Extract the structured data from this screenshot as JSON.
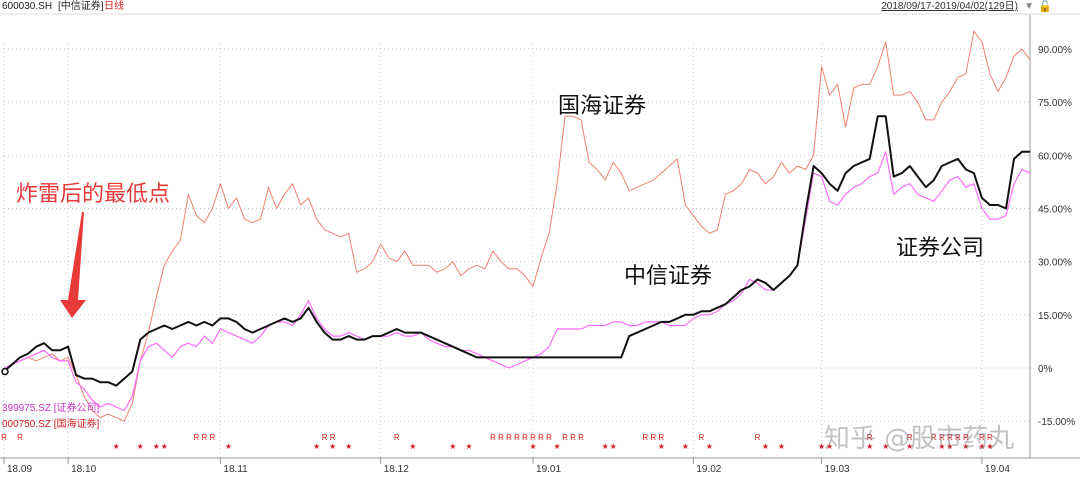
{
  "header": {
    "code": "600030.SH",
    "name": "[中信证券]",
    "period": "日线",
    "range": "2018/09/17-2019/04/02(129日)"
  },
  "legend": {
    "sector": "399975.SZ [证券公司]",
    "guohai": "000750.SZ [国海证券]"
  },
  "annotations": {
    "bottom": "炸雷后的最低点",
    "guohai": "国海证券",
    "zhongxin": "中信证券",
    "sector": "证券公司"
  },
  "watermark": "知乎 @股市药丸",
  "colors": {
    "zhongxin": "#111111",
    "sector": "#ff6bff",
    "guohai": "#f08070",
    "arrow": "#e83a3a",
    "grid": "#c8c8c8",
    "marker": "#d42020"
  },
  "chart_data": {
    "type": "line",
    "x_tick_labels": [
      "18.09",
      "18.10",
      "18.11",
      "18.12",
      "19.01",
      "19.02",
      "19.03",
      "19.04"
    ],
    "x_tick_index": [
      0,
      8,
      27,
      47,
      66,
      86,
      102,
      122
    ],
    "yticks": [
      90,
      75,
      60,
      45,
      30,
      15,
      0,
      -15
    ],
    "ytick_labels": [
      "90.00%",
      "75.00%",
      "60.00%",
      "45.00%",
      "30.00%",
      "15.00%",
      "0%",
      "-15.00%"
    ],
    "ylim": [
      -21,
      100
    ],
    "xlim": [
      0,
      128
    ],
    "series": [
      {
        "name": "国海证券",
        "values": [
          -1,
          1,
          2,
          3,
          2,
          3,
          4,
          2,
          3,
          -2,
          -8,
          -12,
          -14,
          -13,
          -14,
          -15,
          -10,
          2,
          10,
          20,
          29,
          33,
          36,
          49,
          43,
          41,
          45,
          52,
          45,
          48,
          42,
          41,
          42,
          51,
          45,
          49,
          52,
          46,
          48,
          42,
          39,
          38,
          37,
          38,
          27,
          28,
          30,
          35,
          31,
          30,
          33,
          29,
          29,
          29,
          27,
          28,
          30,
          26,
          28,
          29,
          28,
          33,
          30,
          28,
          28,
          26,
          23,
          31,
          38,
          52,
          71,
          71,
          70,
          58,
          56,
          53,
          58,
          55,
          50,
          51,
          52,
          53,
          55,
          57,
          59,
          46,
          43,
          40,
          38,
          39,
          49,
          50,
          52,
          56,
          55,
          52,
          54,
          58,
          55,
          57,
          56,
          60,
          85,
          77,
          80,
          68,
          79,
          80,
          80,
          85,
          92,
          77,
          77,
          78,
          75,
          70,
          70,
          75,
          78,
          82,
          83,
          95,
          92,
          83,
          78,
          82,
          88,
          90,
          87
        ]
      },
      {
        "name": "证券公司",
        "values": [
          0,
          1,
          2,
          3,
          4,
          5,
          3,
          2,
          2,
          -4,
          -6,
          -9,
          -11,
          -10,
          -11,
          -12,
          -8,
          2,
          6,
          7,
          5,
          3,
          6,
          7,
          6,
          9,
          7,
          11,
          10,
          9,
          8,
          7,
          9,
          12,
          13,
          13,
          12,
          15,
          19,
          14,
          11,
          9,
          9,
          10,
          9,
          8,
          9,
          9,
          9,
          10,
          9,
          9,
          10,
          8,
          7,
          6,
          6,
          5,
          5,
          4,
          3,
          2,
          1,
          0,
          1,
          2,
          3,
          4,
          6,
          11,
          11,
          11,
          11,
          12,
          12,
          12,
          13,
          13,
          12,
          12,
          13,
          13,
          13,
          12,
          12,
          12,
          14,
          15,
          15,
          16,
          18,
          19,
          21,
          25,
          24,
          22,
          22,
          24,
          26,
          29,
          42,
          55,
          54,
          47,
          46,
          49,
          51,
          52,
          54,
          55,
          61,
          49,
          51,
          52,
          49,
          48,
          47,
          50,
          53,
          54,
          51,
          52,
          45,
          42,
          42,
          43,
          52,
          56,
          55
        ]
      },
      {
        "name": "中信证券",
        "values": [
          -1,
          1,
          3,
          4,
          6,
          7,
          5,
          5,
          6,
          -2,
          -3,
          -3,
          -4,
          -4,
          -5,
          -3,
          -1,
          8,
          10,
          11,
          12,
          11,
          12,
          13,
          12,
          13,
          12,
          14,
          14,
          13,
          11,
          10,
          11,
          12,
          13,
          14,
          13,
          14,
          17,
          13,
          10,
          8,
          8,
          9,
          8,
          8,
          9,
          9,
          10,
          11,
          10,
          10,
          10,
          9,
          8,
          7,
          6,
          5,
          4,
          3,
          3,
          3,
          3,
          3,
          3,
          3,
          3,
          3,
          3,
          3,
          3,
          3,
          3,
          3,
          3,
          3,
          3,
          3,
          9,
          10,
          11,
          12,
          13,
          13,
          14,
          15,
          15,
          16,
          16,
          17,
          18,
          20,
          22,
          23,
          25,
          24,
          22,
          24,
          26,
          29,
          44,
          57,
          55,
          52,
          50,
          55,
          57,
          58,
          59,
          71,
          71,
          54,
          55,
          57,
          54,
          51,
          53,
          57,
          58,
          59,
          56,
          55,
          48,
          46,
          46,
          45,
          59,
          61,
          61
        ]
      }
    ],
    "markers": {
      "row1": [
        0,
        2,
        24,
        25,
        26,
        40,
        41,
        49,
        61,
        62,
        63,
        64,
        65,
        66,
        67,
        68,
        70,
        71,
        72,
        80,
        81,
        82,
        87,
        94,
        108,
        113,
        116,
        117,
        118,
        119,
        120,
        122,
        123
      ],
      "row2": [
        14,
        17,
        19,
        20,
        28,
        39,
        41,
        43,
        51,
        56,
        58,
        66,
        69,
        75,
        76,
        82,
        85,
        88,
        95,
        97,
        102,
        103,
        108,
        110,
        113,
        117,
        118,
        120,
        122,
        123
      ],
      "row1_label": "R",
      "row2_label": "★"
    }
  }
}
